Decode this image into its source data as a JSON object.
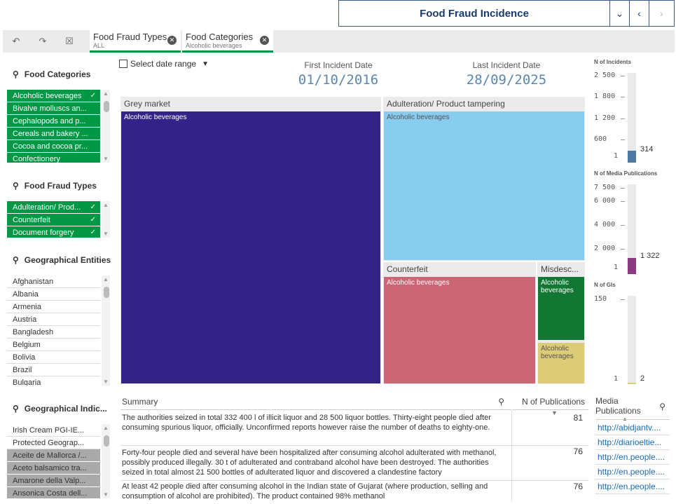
{
  "header": {
    "title": "Food Fraud Incidence",
    "dropdown_icon": "chevron-down-icon",
    "prev_icon": "chevron-left-icon",
    "next_icon": "chevron-right-icon"
  },
  "selections": [
    {
      "name": "Food Fraud Types",
      "value": "ALL"
    },
    {
      "name": "Food Categories",
      "value": "Alcoholic beverages"
    }
  ],
  "filters": {
    "food_categories": {
      "title": "Food Categories",
      "items": [
        "Alcoholic beverages",
        "Bivalve molluscs an...",
        "Cephalopods and p...",
        "Cereals and bakery ...",
        "Cocoa and cocoa pr...",
        "Confectionery"
      ]
    },
    "food_fraud_types": {
      "title": "Food Fraud Types",
      "items": [
        "Adulteration/ Prod...",
        "Counterfeit",
        "Document forgery"
      ]
    },
    "geo_entities": {
      "title": "Geographical Entities",
      "items": [
        "Afghanistan",
        "Albania",
        "Armenia",
        "Austria",
        "Bangladesh",
        "Belgium",
        "Bolivia",
        "Brazil",
        "Bulgaria"
      ]
    },
    "geo_indications": {
      "title": "Geographical Indic...",
      "items": [
        "Irish Cream PGI-IE...",
        "Protected Geograp...",
        "Aceite de Mallorca /...",
        "Aceto balsamico tra...",
        "Amarone della Valp...",
        "Ansonica Costa dell..."
      ]
    }
  },
  "dates": {
    "select_label": "Select date range",
    "first_label": "First Incident Date",
    "first_value": "01/10/2016",
    "last_label": "Last Incident Date",
    "last_value": "28/09/2025"
  },
  "treemap": {
    "groups": [
      {
        "label": "Grey market",
        "cell": "Alcoholic beverages",
        "color": "#332288"
      },
      {
        "label": "Adulteration/ Product tampering",
        "cell": "Alcoholic beverages",
        "color": "#88ccee"
      },
      {
        "label": "Counterfeit",
        "cell": "Alcoholic beverages",
        "color": "#cc6677"
      },
      {
        "label": "Misdesc...",
        "cell": "Alcoholic beverages",
        "color": "#117733"
      },
      {
        "label": "",
        "cell": "Alcoholic beverages",
        "color": "#ddcc77"
      }
    ]
  },
  "gauges": {
    "incidents": {
      "title": "N of Incidents",
      "ticks": [
        "2 500",
        "1 800",
        "1 200",
        "600",
        "1"
      ],
      "value": "314",
      "color": "#4e79a7"
    },
    "media": {
      "title": "N of Media Publications",
      "ticks": [
        "7 500",
        "6 000",
        "4 000",
        "2 000",
        "1"
      ],
      "value": "1 322",
      "color": "#8e3a80"
    },
    "gis": {
      "title": "N of GIs",
      "ticks": [
        "150",
        "1"
      ],
      "value": "2",
      "color": "#ddcc77"
    }
  },
  "table": {
    "headers": {
      "summary": "Summary",
      "pubs": "N of Publications"
    },
    "rows": [
      {
        "summary": "The authorities seized in total 332 400 l of illicit liquor and 28 500 liquor bottles. Thirty-eight people died after consuming spurious liquor, officially. Unconfirmed reports however raise the number of deaths to eighty-one.",
        "pubs": "81"
      },
      {
        "summary": "Forty-four people died and several have been hospitalized after consuming alcohol adulterated with methanol, possibly produced illegally. 30 t of adulterated and contraband alcohol have been destroyed. The authorities seized in total almost 21 500 bottles of adulterated liquor and discovered a clandestine factory",
        "pubs": "76"
      },
      {
        "summary": "At least 42 people died after consuming alcohol in the Indian state of Gujarat (where production, selling and consumption of alcohol are prohibited). The product contained 98% methanol",
        "pubs": "76"
      }
    ]
  },
  "media": {
    "title": "Media Publications",
    "links": [
      "http://abidjantv....",
      "http://diarioeltie...",
      "http://en.people....",
      "http://en.people....",
      "http://en.people...."
    ]
  }
}
